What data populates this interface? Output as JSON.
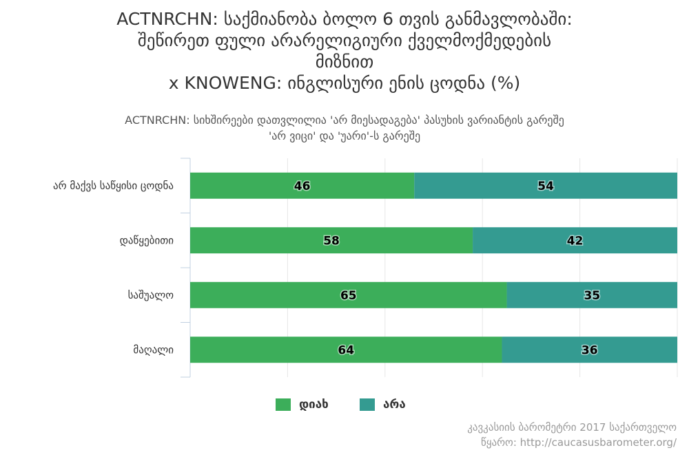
{
  "title_lines": [
    "ACTNRCHN: საქმიანობა ბოლო 6 თვის განმავლობაში:",
    "შეწირეთ ფული არარელიგიური ქველმოქმედების",
    "მიზნით",
    "x KNOWENG: ინგლისური ენის ცოდნა (%)"
  ],
  "subtitle_lines": [
    "ACTNRCHN: სიხშირეები დათვლილია 'არ მიესადაგება' პასუხის ვარიანტის გარეშე",
    "'არ ვიცი' და 'უარი'-ს გარეშე"
  ],
  "credits": [
    "კავკასიის ბარომეტრი 2017 საქართველო",
    "წყარო: http://caucasusbarometer.org/"
  ],
  "chart_data": {
    "type": "bar",
    "orientation": "horizontal",
    "stacked": true,
    "categories": [
      "არ მაქვს საწყისი ცოდნა",
      "დაწყებითი",
      "საშუალო",
      "მაღალი"
    ],
    "series": [
      {
        "name": "დიახ",
        "values": [
          46,
          58,
          65,
          64
        ],
        "color": "#3cae5a"
      },
      {
        "name": "არა",
        "values": [
          54,
          42,
          35,
          36
        ],
        "color": "#349b91"
      }
    ],
    "xlim": [
      0,
      100
    ],
    "grid": true,
    "legend": "bottom-center",
    "data_labels": true
  }
}
